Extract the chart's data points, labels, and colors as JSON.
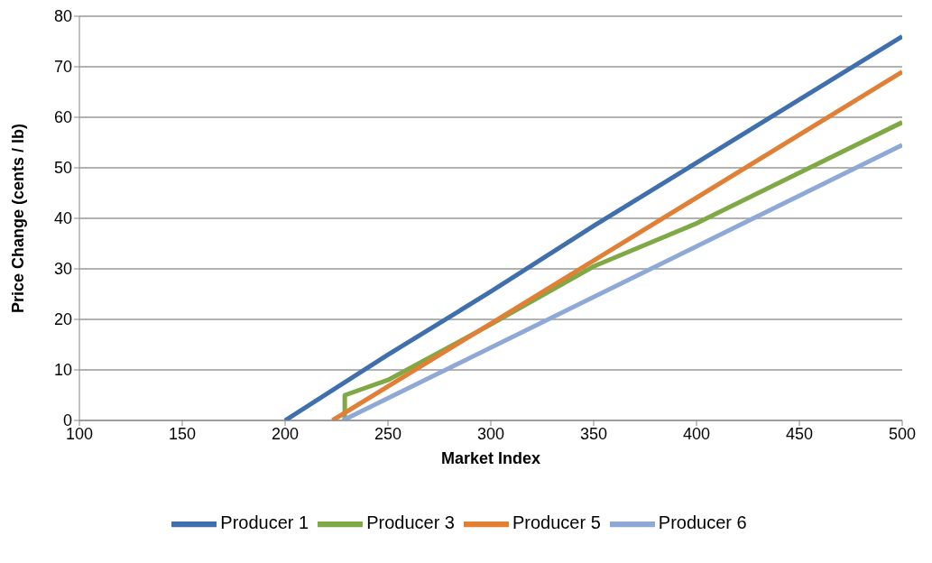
{
  "chart_data": {
    "type": "line",
    "xlabel": "Market Index",
    "ylabel": "Price Change (cents / lb)",
    "xlim": [
      100,
      500
    ],
    "xticks": [
      100,
      150,
      200,
      250,
      300,
      350,
      400,
      450,
      500
    ],
    "ylim": [
      0,
      80
    ],
    "yticks": [
      0,
      10,
      20,
      30,
      40,
      50,
      60,
      70,
      80
    ],
    "grid": "y",
    "legend": "bottom",
    "marker": "none",
    "line_style": "solid",
    "series": [
      {
        "name": "Producer 1",
        "color": "#3f6fad",
        "x": [
          200,
          250,
          300,
          350,
          400,
          450,
          500
        ],
        "values": [
          0,
          13,
          25.5,
          38.5,
          51,
          63.5,
          76
        ]
      },
      {
        "name": "Producer 3",
        "color": "#7fa945",
        "x": [
          229,
          229,
          250,
          300,
          350,
          400,
          450,
          500
        ],
        "values": [
          0,
          5,
          8,
          19,
          30.5,
          39,
          49,
          59
        ]
      },
      {
        "name": "Producer 5",
        "color": "#e07f35",
        "x": [
          223,
          500
        ],
        "values": [
          0,
          69
        ]
      },
      {
        "name": "Producer 6",
        "color": "#8ea9d6",
        "x": [
          228,
          500
        ],
        "values": [
          0,
          54.5
        ]
      }
    ]
  }
}
